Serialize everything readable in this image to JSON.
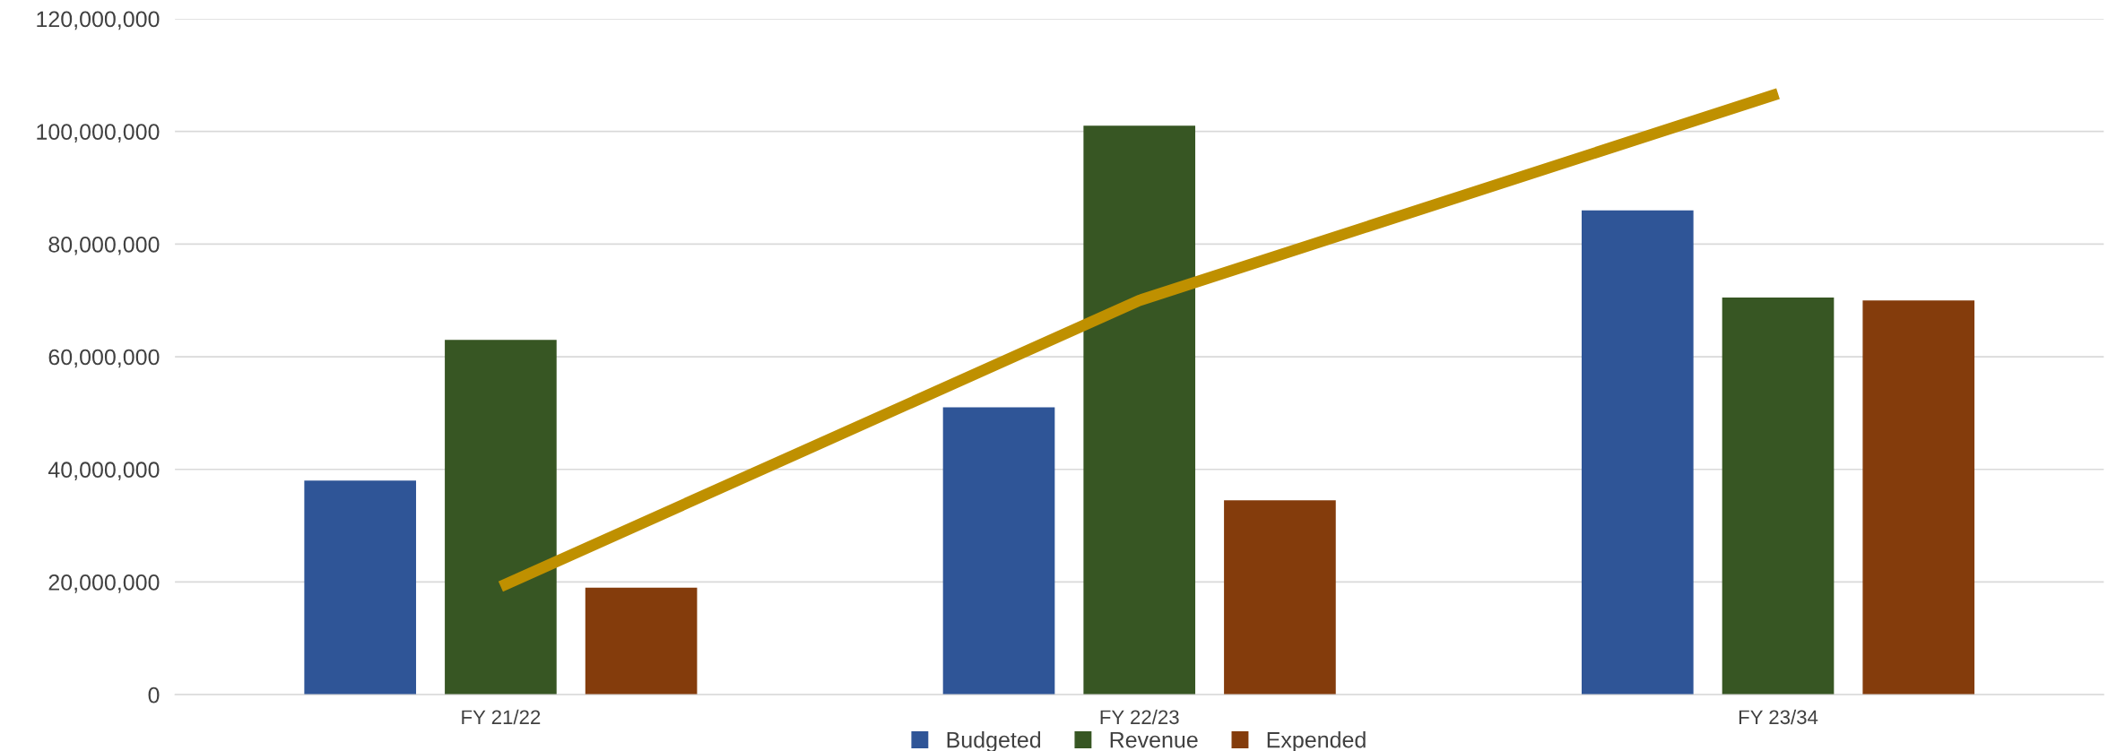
{
  "chart_data": {
    "type": "bar",
    "categories": [
      "FY 21/22",
      "FY 22/23",
      "FY 23/34"
    ],
    "series": [
      {
        "name": "Budgeted",
        "color": "#2f5597",
        "values": [
          38000000,
          51000000,
          86000000
        ]
      },
      {
        "name": "Revenue",
        "color": "#375623",
        "values": [
          63000000,
          101000000,
          70500000
        ]
      },
      {
        "name": "Expended",
        "color": "#843c0c",
        "values": [
          19000000,
          34500000,
          70000000
        ]
      },
      {
        "type": "line",
        "color": "#bf9000",
        "values": [
          19200000,
          70000000,
          106700000
        ]
      }
    ],
    "ylim": [
      0,
      120000000
    ],
    "yticks": [
      {
        "value": 0,
        "label": "0"
      },
      {
        "value": 20000000,
        "label": "20,000,000"
      },
      {
        "value": 40000000,
        "label": "40,000,000"
      },
      {
        "value": 60000000,
        "label": "60,000,000"
      },
      {
        "value": 80000000,
        "label": "80,000,000"
      },
      {
        "value": 100000000,
        "label": "100,000,000"
      },
      {
        "value": 120000000,
        "label": "120,000,000"
      }
    ],
    "grid": "y",
    "legend": "bottom"
  }
}
